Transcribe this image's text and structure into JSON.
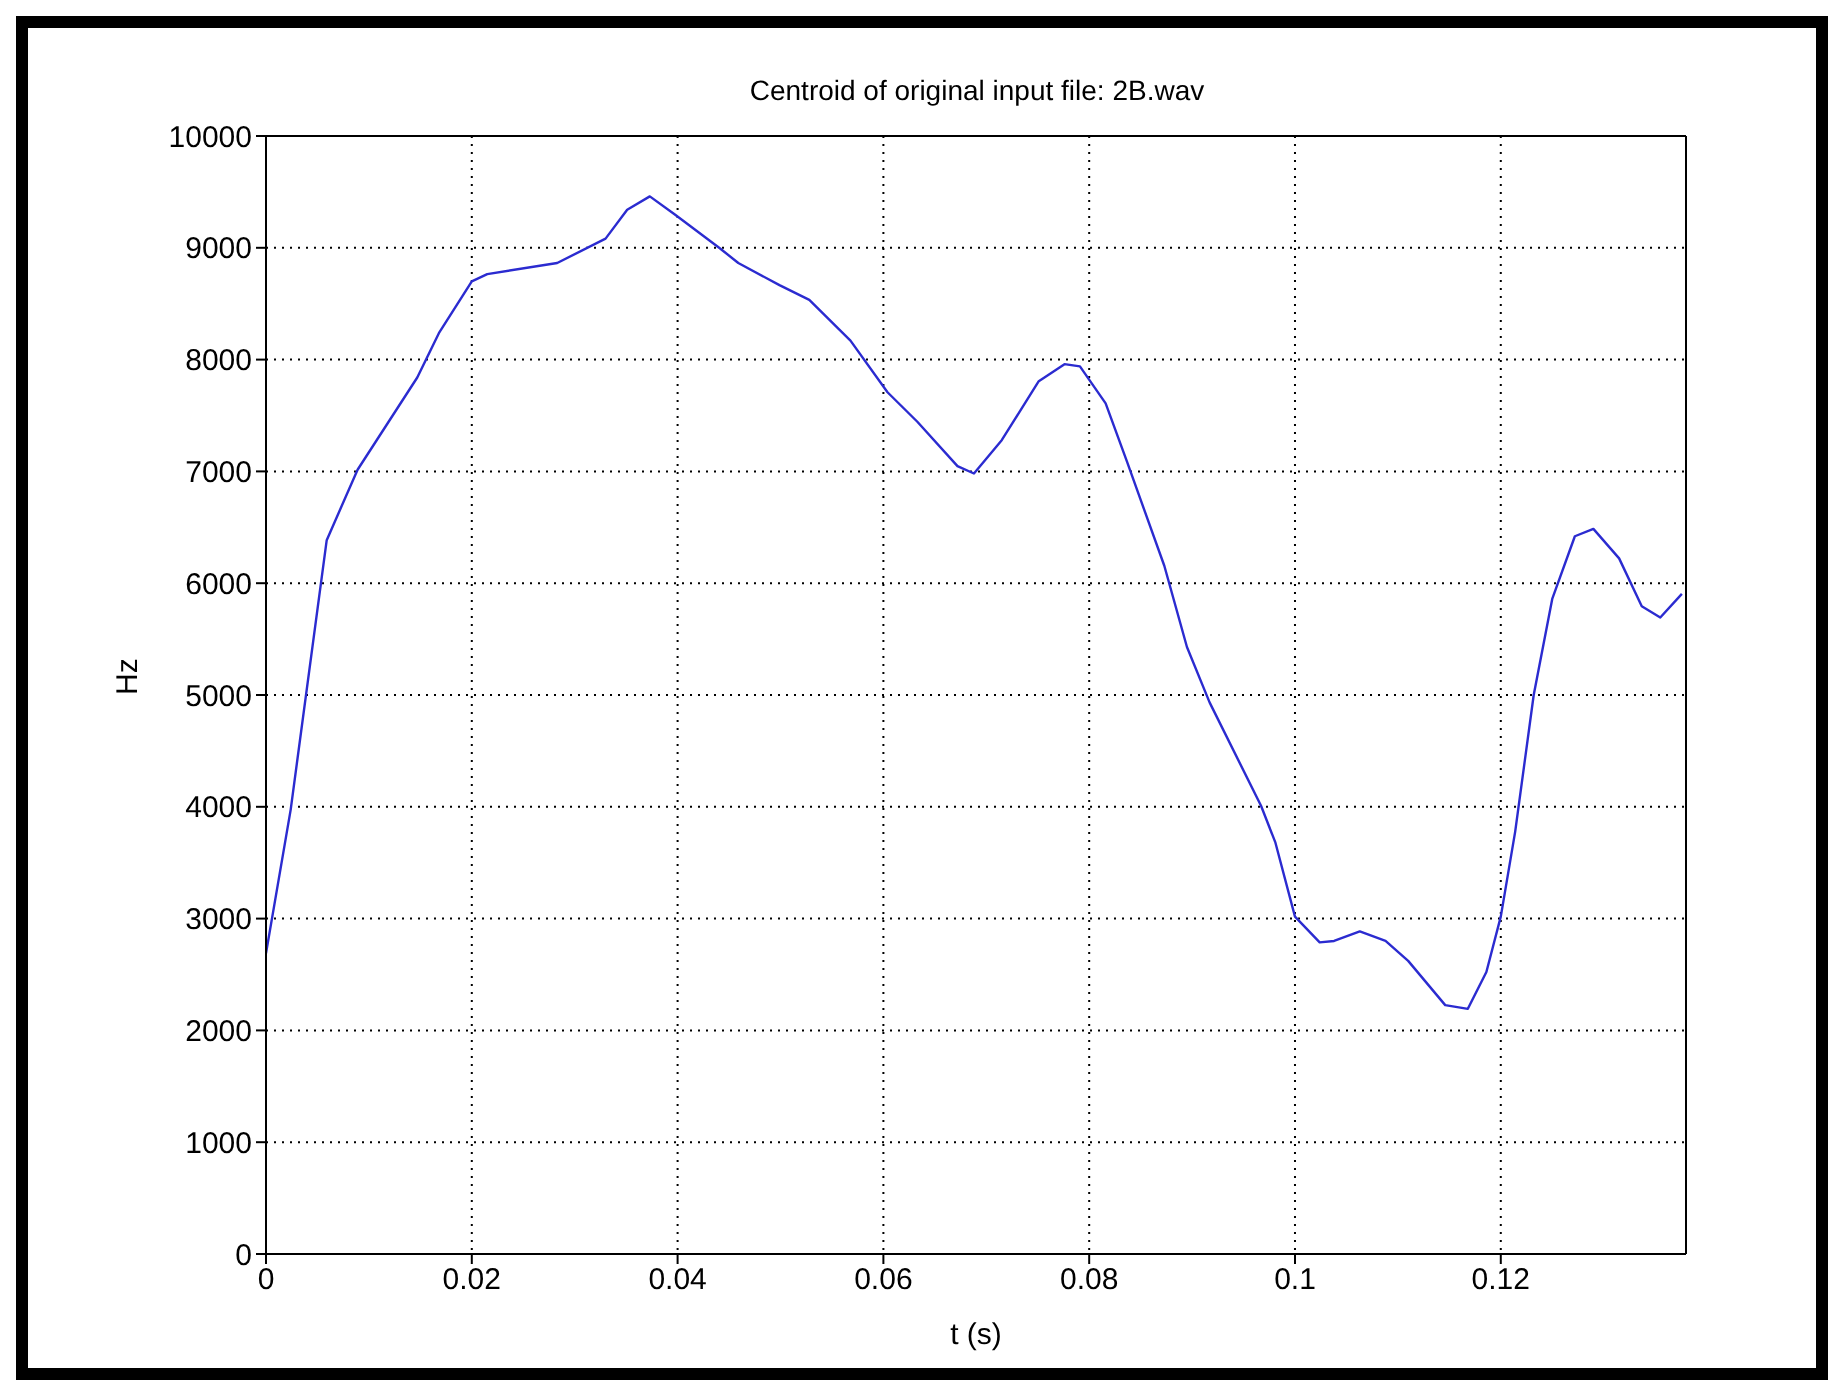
{
  "chart_data": {
    "type": "line",
    "title": "Centroid of original input file: 2B.wav",
    "xlabel": "t (s)",
    "ylabel": "Hz",
    "xlim": [
      0,
      0.138
    ],
    "xticks": [
      0,
      0.02,
      0.04,
      0.06,
      0.08,
      0.1,
      0.12
    ],
    "ylim": [
      0,
      10000
    ],
    "yticks": [
      0,
      1000,
      2000,
      3000,
      4000,
      5000,
      6000,
      7000,
      8000,
      9000,
      10000
    ],
    "grid": true,
    "legend": false,
    "marker": "none",
    "line_style": "solid",
    "series": [
      {
        "color": "#2b2bd0",
        "x": [
          0,
          0.0024,
          0.0059,
          0.0089,
          0.0147,
          0.0168,
          0.02,
          0.0215,
          0.0283,
          0.033,
          0.0351,
          0.0373,
          0.0398,
          0.0441,
          0.0459,
          0.0499,
          0.0528,
          0.0568,
          0.0604,
          0.0633,
          0.0672,
          0.0688,
          0.0715,
          0.0751,
          0.0776,
          0.0791,
          0.0816,
          0.0837,
          0.0873,
          0.0895,
          0.0917,
          0.0967,
          0.0981,
          0.1,
          0.1024,
          0.1038,
          0.1063,
          0.1088,
          0.111,
          0.1146,
          0.1168,
          0.1186,
          0.12,
          0.1214,
          0.1232,
          0.125,
          0.1272,
          0.129,
          0.1315,
          0.1337,
          0.1355,
          0.1376
        ],
        "values": [
          2690,
          3975,
          6385,
          7015,
          7840,
          8236,
          8700,
          8765,
          8864,
          9082,
          9340,
          9460,
          9293,
          8996,
          8864,
          8666,
          8534,
          8170,
          7708,
          7444,
          7047,
          6981,
          7279,
          7807,
          7959,
          7939,
          7609,
          7080,
          6156,
          5429,
          4934,
          4009,
          3679,
          3018,
          2787,
          2800,
          2886,
          2800,
          2622,
          2226,
          2193,
          2523,
          3018,
          3778,
          5000,
          5859,
          6420,
          6486,
          6222,
          5793,
          5693,
          5905
        ]
      }
    ]
  }
}
